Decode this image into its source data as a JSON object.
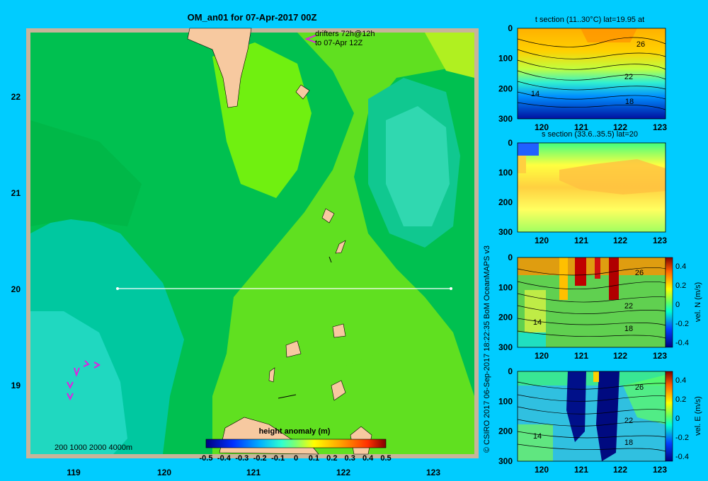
{
  "colors": {
    "background": "#00ccff",
    "frame": "#c8b49a",
    "land": "#f7c9a0",
    "drifter": "#e020e0",
    "section_line": "#ffffff"
  },
  "map": {
    "title": "OM_an01 for 07-Apr-2017 00Z",
    "drifter_note_line1": "drifters 72h@12h",
    "drifter_note_line2": "to 07-Apr 12Z",
    "depth_legend": "200  1000  2000  4000m",
    "colorbar_title": "height anomaly  (m)",
    "colorbar_ticks": [
      "-0.5",
      "-0.4",
      "-0.3",
      "-0.2",
      "-0.1",
      "0",
      "0.1",
      "0.2",
      "0.3",
      "0.4",
      "0.5"
    ],
    "credit": "© CSIRO 2017   06-Sep-2017 18:22:35 BoM OceanMAPS v3"
  },
  "chart_data": [
    {
      "type": "heatmap",
      "title": "OM_an01 for 07-Apr-2017 00Z",
      "x_ticks": [
        "119",
        "120",
        "121",
        "122",
        "123"
      ],
      "y_ticks": [
        "22",
        "21",
        "20",
        "19"
      ],
      "xlim": [
        118.5,
        123.5
      ],
      "ylim": [
        18.3,
        22.7
      ],
      "colorbar": {
        "title": "height anomaly  (m)",
        "range": [
          -0.5,
          0.5
        ]
      },
      "section_line": {
        "lat": 20,
        "lon": [
          119.5,
          123.2
        ]
      }
    },
    {
      "type": "heatmap",
      "title": "t section (11..30°C) lat=19.95 at",
      "x_ticks": [
        "120",
        "121",
        "122",
        "123"
      ],
      "y_ticks": [
        "0",
        "100",
        "200",
        "300"
      ],
      "contour_labels": [
        "26",
        "22",
        "18",
        "14"
      ]
    },
    {
      "type": "heatmap",
      "title": "s section (33.6..35.5) lat=20",
      "x_ticks": [
        "120",
        "121",
        "122",
        "123"
      ],
      "y_ticks": [
        "0",
        "100",
        "200",
        "300"
      ]
    },
    {
      "type": "heatmap",
      "title": "",
      "x_ticks": [
        "120",
        "121",
        "122",
        "123"
      ],
      "y_ticks": [
        "0",
        "100",
        "200",
        "300"
      ],
      "contour_labels": [
        "26",
        "22",
        "18",
        "14"
      ],
      "colorbar": {
        "label": "vel. N  (m/s)",
        "ticks": [
          "0.4",
          "0.2",
          "0",
          "-0.2",
          "-0.4"
        ]
      }
    },
    {
      "type": "heatmap",
      "title": "",
      "x_ticks": [
        "120",
        "121",
        "122",
        "123"
      ],
      "y_ticks": [
        "0",
        "100",
        "200",
        "300"
      ],
      "contour_labels": [
        "26",
        "22",
        "18",
        "14"
      ],
      "colorbar": {
        "label": "vel. E  (m/s)",
        "ticks": [
          "0.4",
          "0.2",
          "0",
          "-0.2",
          "-0.4"
        ]
      }
    }
  ]
}
